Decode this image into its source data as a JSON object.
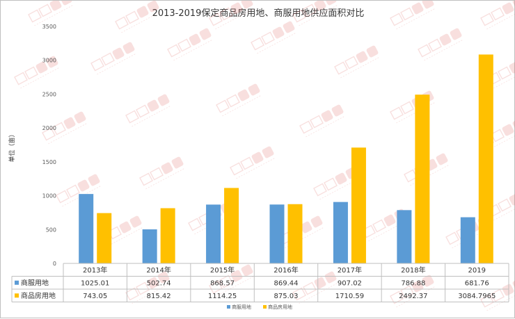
{
  "chart_data": {
    "type": "bar",
    "title": "2013-2019保定商品房用地、商服用地供应面积对比",
    "ylabel": "单位（亩）",
    "xlabel": "",
    "categories": [
      "2013年",
      "2014年",
      "2015年",
      "2016年",
      "2017年",
      "2018年",
      "2019"
    ],
    "ylim": [
      0,
      3500
    ],
    "yticks": [
      "0",
      "500",
      "1000",
      "1500",
      "2000",
      "2500",
      "3000",
      "3500"
    ],
    "grid": false,
    "legend_position": "bottom",
    "data_table": true,
    "series": [
      {
        "name": "商服用地",
        "color": "#5b9bd5",
        "values": [
          1025.01,
          502.74,
          868.57,
          869.44,
          907.02,
          786.88,
          681.76
        ],
        "labels": [
          "1025.01",
          "502.74",
          "868.57",
          "869.44",
          "907.02",
          "786.88",
          "681.76"
        ]
      },
      {
        "name": "商品房用地",
        "color": "#ffc000",
        "values": [
          743.05,
          815.42,
          1114.25,
          875.03,
          1710.59,
          2492.37,
          3084.7965
        ],
        "labels": [
          "743.05",
          "815.42",
          "1114.25",
          "875.03",
          "1710.59",
          "2492.37",
          "3084.7965"
        ]
      }
    ]
  }
}
